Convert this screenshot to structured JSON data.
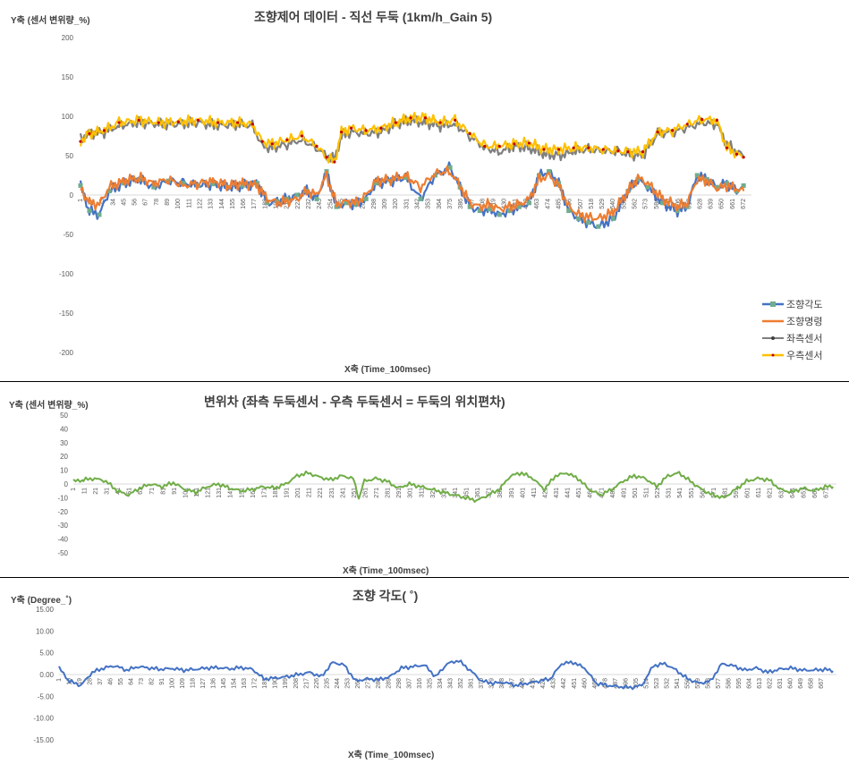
{
  "charts": [
    {
      "title": "조향제어 데이터 - 직선 두둑 (1km/h_Gain 5)",
      "ylabel": "Y축 (센서 변위량_%)",
      "xlabel": "X축 (Time_100msec)"
    },
    {
      "title": "변위차 (좌측 두둑센서 - 우측 두둑센서 = 두둑의 위치편차)",
      "ylabel": "Y축 (센서 변위량_%)",
      "xlabel": "X축 (Time_100msec)"
    },
    {
      "title": "조향 각도( ˚)",
      "ylabel": "Y축 (Degree_˚)",
      "xlabel": "X축 (Time_100msec)"
    }
  ],
  "chart_data": [
    {
      "type": "line",
      "title": "조향제어 데이터 - 직선 두둑 (1km/h_Gain 5)",
      "xlabel": "X축 (Time_100msec)",
      "ylabel": "Y축 (센서 변위량_%)",
      "ylim": [
        -200,
        200
      ],
      "yticks": [
        -200,
        -150,
        -100,
        -50,
        0,
        50,
        100,
        150,
        200
      ],
      "xlim": [
        1,
        680
      ],
      "xticks": [
        1,
        12,
        23,
        34,
        45,
        56,
        67,
        78,
        89,
        100,
        111,
        122,
        133,
        144,
        155,
        166,
        177,
        188,
        199,
        210,
        221,
        232,
        243,
        254,
        265,
        276,
        287,
        298,
        309,
        320,
        331,
        342,
        353,
        364,
        375,
        386,
        397,
        408,
        419,
        430,
        441,
        452,
        463,
        474,
        485,
        496,
        507,
        518,
        529,
        540,
        551,
        562,
        573,
        584,
        595,
        606,
        617,
        628,
        639,
        650,
        661,
        672
      ],
      "legend_position": "right",
      "grid": false,
      "series": [
        {
          "name": "조향각도",
          "color": "#4472C4",
          "marker_color": "#70AD8E",
          "x": [
            1,
            10,
            20,
            30,
            45,
            60,
            75,
            90,
            105,
            120,
            135,
            150,
            165,
            180,
            190,
            200,
            210,
            220,
            230,
            240,
            250,
            260,
            270,
            280,
            290,
            300,
            315,
            330,
            345,
            360,
            375,
            385,
            395,
            405,
            415,
            425,
            435,
            445,
            455,
            465,
            475,
            485,
            495,
            505,
            515,
            525,
            540,
            555,
            565,
            575,
            590,
            605,
            615,
            625,
            635,
            645,
            655,
            665,
            672
          ],
          "values": [
            12,
            -20,
            -25,
            5,
            15,
            20,
            10,
            18,
            15,
            12,
            14,
            10,
            12,
            15,
            -10,
            -8,
            -5,
            0,
            5,
            -5,
            30,
            -15,
            -10,
            -12,
            -5,
            15,
            18,
            22,
            -5,
            25,
            35,
            10,
            -15,
            -20,
            -18,
            -25,
            -20,
            -15,
            -10,
            25,
            30,
            15,
            -20,
            -30,
            -35,
            -40,
            -30,
            5,
            20,
            10,
            -10,
            -20,
            -15,
            25,
            20,
            10,
            15,
            5,
            12
          ]
        },
        {
          "name": "조향명령",
          "color": "#ED7D31",
          "x": [
            1,
            10,
            20,
            30,
            45,
            60,
            75,
            90,
            105,
            120,
            135,
            150,
            165,
            180,
            190,
            200,
            210,
            220,
            230,
            240,
            250,
            260,
            270,
            280,
            290,
            300,
            315,
            330,
            345,
            360,
            375,
            385,
            395,
            405,
            415,
            425,
            435,
            445,
            455,
            465,
            475,
            485,
            495,
            505,
            515,
            525,
            540,
            555,
            565,
            575,
            590,
            605,
            615,
            625,
            635,
            645,
            655,
            665,
            672
          ],
          "values": [
            8,
            -10,
            -12,
            10,
            18,
            22,
            15,
            20,
            12,
            15,
            18,
            12,
            15,
            12,
            -5,
            -10,
            -8,
            -5,
            5,
            0,
            25,
            -12,
            -8,
            -10,
            0,
            18,
            20,
            25,
            10,
            28,
            30,
            12,
            -10,
            -15,
            -12,
            -18,
            -15,
            -12,
            -5,
            20,
            25,
            12,
            -15,
            -25,
            -28,
            -30,
            -22,
            5,
            22,
            15,
            -5,
            -15,
            -10,
            20,
            18,
            8,
            12,
            8,
            5
          ]
        },
        {
          "name": "좌측센서",
          "color": "#7F7F7F",
          "x": [
            1,
            10,
            25,
            40,
            60,
            80,
            100,
            120,
            140,
            160,
            175,
            185,
            195,
            210,
            225,
            240,
            250,
            258,
            265,
            275,
            290,
            305,
            320,
            335,
            350,
            365,
            380,
            395,
            410,
            425,
            440,
            455,
            470,
            485,
            500,
            515,
            530,
            545,
            555,
            570,
            585,
            600,
            615,
            630,
            645,
            655,
            665,
            672
          ],
          "values": [
            72,
            78,
            80,
            88,
            92,
            90,
            90,
            92,
            88,
            90,
            88,
            62,
            60,
            65,
            70,
            60,
            50,
            45,
            75,
            80,
            78,
            80,
            90,
            95,
            92,
            88,
            90,
            75,
            60,
            55,
            62,
            60,
            52,
            50,
            55,
            58,
            56,
            55,
            52,
            50,
            78,
            80,
            85,
            92,
            90,
            65,
            55,
            50
          ]
        },
        {
          "name": "우측센서",
          "color": "#FFC000",
          "marker_color": "#C00000",
          "x": [
            1,
            10,
            25,
            40,
            60,
            80,
            100,
            120,
            140,
            160,
            175,
            185,
            195,
            210,
            225,
            240,
            250,
            258,
            265,
            275,
            290,
            305,
            320,
            335,
            350,
            365,
            380,
            395,
            410,
            425,
            440,
            455,
            470,
            485,
            500,
            515,
            530,
            545,
            555,
            570,
            585,
            600,
            615,
            630,
            645,
            655,
            665,
            672
          ],
          "values": [
            68,
            78,
            82,
            92,
            95,
            92,
            93,
            95,
            92,
            92,
            90,
            68,
            65,
            70,
            75,
            62,
            48,
            42,
            80,
            85,
            82,
            85,
            92,
            98,
            98,
            92,
            95,
            78,
            62,
            62,
            65,
            66,
            58,
            58,
            60,
            60,
            58,
            56,
            55,
            55,
            80,
            82,
            90,
            96,
            95,
            60,
            52,
            48
          ]
        }
      ]
    },
    {
      "type": "line",
      "title": "변위차 (좌측 두둑센서 - 우측 두둑센서 = 두둑의 위치편차)",
      "xlabel": "X축 (Time_100msec)",
      "ylabel": "Y축 (센서 변위량_%)",
      "ylim": [
        -50,
        50
      ],
      "yticks": [
        -50,
        -40,
        -30,
        -20,
        -10,
        0,
        10,
        20,
        30,
        40,
        50
      ],
      "xlim": [
        1,
        680
      ],
      "xticks": [
        1,
        11,
        21,
        31,
        41,
        51,
        61,
        71,
        81,
        91,
        101,
        111,
        121,
        131,
        141,
        151,
        161,
        171,
        181,
        191,
        201,
        211,
        221,
        231,
        241,
        251,
        261,
        271,
        281,
        291,
        301,
        311,
        321,
        331,
        341,
        351,
        361,
        371,
        381,
        391,
        401,
        411,
        421,
        431,
        441,
        451,
        461,
        471,
        481,
        491,
        501,
        511,
        521,
        531,
        541,
        551,
        561,
        571,
        581,
        591,
        601,
        611,
        621,
        631,
        641,
        651,
        661,
        671
      ],
      "grid": false,
      "series": [
        {
          "name": "",
          "color": "#70AD47",
          "x": [
            1,
            10,
            20,
            30,
            40,
            50,
            60,
            70,
            80,
            90,
            100,
            110,
            120,
            130,
            140,
            150,
            160,
            170,
            180,
            190,
            200,
            210,
            220,
            230,
            240,
            250,
            255,
            260,
            270,
            280,
            290,
            300,
            310,
            320,
            330,
            340,
            350,
            360,
            370,
            380,
            390,
            400,
            410,
            420,
            430,
            440,
            450,
            460,
            470,
            480,
            490,
            500,
            510,
            520,
            530,
            540,
            550,
            560,
            570,
            580,
            590,
            600,
            610,
            620,
            630,
            640,
            650,
            660,
            670,
            677
          ],
          "values": [
            2,
            3,
            4,
            2,
            -5,
            -8,
            -3,
            0,
            -2,
            1,
            -4,
            -6,
            -2,
            0,
            -3,
            -5,
            -4,
            -2,
            -3,
            0,
            6,
            8,
            5,
            3,
            6,
            4,
            -10,
            2,
            4,
            2,
            -3,
            0,
            -2,
            -4,
            -6,
            -8,
            -10,
            -12,
            -8,
            -4,
            6,
            8,
            4,
            -4,
            6,
            8,
            4,
            -4,
            -8,
            -4,
            2,
            6,
            4,
            -2,
            6,
            8,
            2,
            -4,
            -8,
            -10,
            -4,
            2,
            4,
            3,
            -4,
            -6,
            -3,
            -5,
            -2,
            -2
          ]
        }
      ]
    },
    {
      "type": "line",
      "title": "조향 각도( ˚)",
      "xlabel": "X축 (Time_100msec)",
      "ylabel": "Y축 (Degree_˚)",
      "ylim": [
        -15,
        15
      ],
      "yticks": [
        "-15.00",
        "-10.00",
        "-5.00",
        "0.00",
        "5.00",
        "10.00",
        "15.00"
      ],
      "xlim": [
        1,
        680
      ],
      "xticks": [
        1,
        10,
        19,
        28,
        37,
        46,
        55,
        64,
        73,
        82,
        91,
        100,
        109,
        118,
        127,
        136,
        145,
        154,
        163,
        172,
        181,
        190,
        199,
        208,
        217,
        226,
        235,
        244,
        253,
        262,
        271,
        280,
        289,
        298,
        307,
        316,
        325,
        334,
        343,
        352,
        361,
        370,
        379,
        388,
        397,
        406,
        415,
        424,
        433,
        442,
        451,
        460,
        469,
        478,
        487,
        496,
        505,
        514,
        523,
        532,
        541,
        550,
        559,
        568,
        577,
        586,
        595,
        604,
        613,
        622,
        631,
        640,
        649,
        658,
        667
      ],
      "grid": false,
      "series": [
        {
          "name": "",
          "color": "#4472C4",
          "x": [
            1,
            10,
            20,
            30,
            40,
            50,
            60,
            70,
            80,
            90,
            100,
            110,
            120,
            130,
            140,
            150,
            160,
            170,
            180,
            190,
            200,
            210,
            220,
            230,
            240,
            250,
            260,
            270,
            280,
            290,
            300,
            310,
            320,
            330,
            340,
            350,
            360,
            370,
            380,
            390,
            400,
            410,
            420,
            430,
            440,
            450,
            460,
            470,
            480,
            490,
            500,
            510,
            520,
            530,
            540,
            550,
            560,
            570,
            580,
            590,
            600,
            610,
            620,
            630,
            640,
            650,
            660,
            670,
            677
          ],
          "values": [
            1.5,
            -1.5,
            -2.5,
            0.5,
            1.5,
            2,
            1,
            1.8,
            1.5,
            1.2,
            1.4,
            1,
            1.2,
            1.5,
            1.6,
            1.3,
            1.6,
            1.2,
            -1,
            -0.8,
            -0.5,
            0,
            0.5,
            -0.5,
            2.8,
            2.2,
            -1.5,
            -1,
            -1.2,
            -0.5,
            1.5,
            1.8,
            2.2,
            -0.5,
            2.5,
            3.2,
            1,
            -1.5,
            -2,
            -1.8,
            -2.5,
            -2,
            -1.5,
            -1,
            2.5,
            2.8,
            1.5,
            -2,
            -2.5,
            -2.8,
            -3,
            -2.5,
            2,
            2.5,
            1,
            -1,
            -2,
            -1.5,
            2.5,
            2,
            1,
            1.5,
            0.5,
            1.2,
            1.5,
            1,
            1,
            1.2,
            0.8
          ]
        }
      ]
    }
  ]
}
